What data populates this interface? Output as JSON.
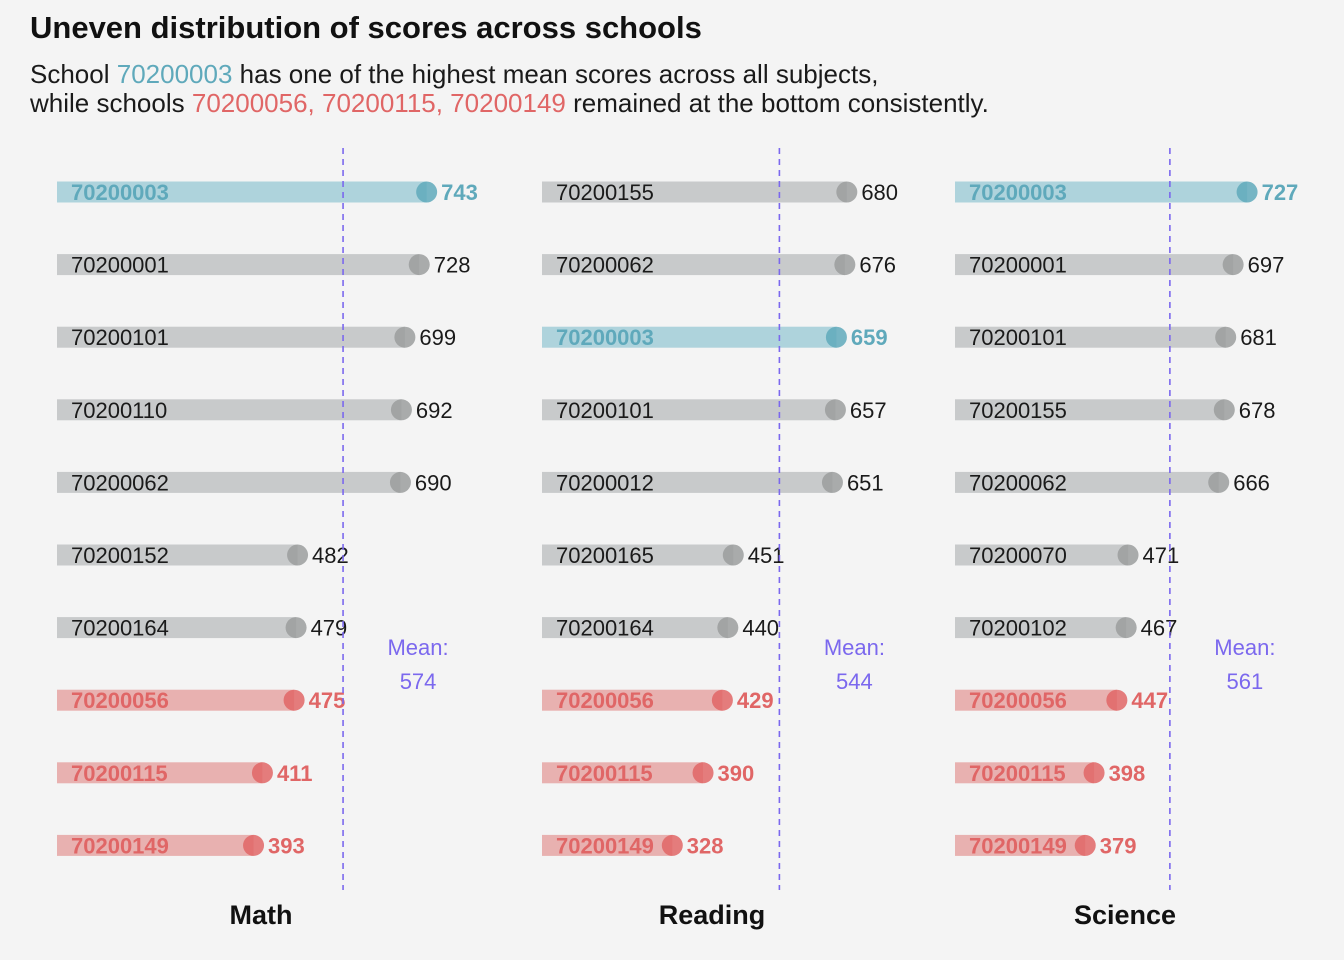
{
  "title": "Uneven distribution of scores across schools",
  "subtitle": {
    "line1": {
      "pre": "School ",
      "highlight": "70200003",
      "post": " has one of the highest mean scores across all subjects,"
    },
    "line2": {
      "pre": "while schools ",
      "highlight": "70200056, 70200115, 70200149",
      "post": " remained at the bottom consistently."
    }
  },
  "colors": {
    "background": "#f4f4f4",
    "highlight_top": "#5fa9bb",
    "highlight_top_bar": "#aed3dc",
    "highlight_bottom": "#e06666",
    "highlight_bottom_bar": "#e8b1b0",
    "neutral_bar": "#c8cacb",
    "neutral_dot": "#9b9d9e",
    "mean_line": "#7b68ee"
  },
  "chart_data": [
    {
      "type": "bar",
      "xlabel": "Math",
      "mean_label": "Mean:",
      "mean": 574,
      "rows": [
        {
          "school": "70200003",
          "value": 743,
          "group": "top"
        },
        {
          "school": "70200001",
          "value": 728,
          "group": "neutral"
        },
        {
          "school": "70200101",
          "value": 699,
          "group": "neutral"
        },
        {
          "school": "70200110",
          "value": 692,
          "group": "neutral"
        },
        {
          "school": "70200062",
          "value": 690,
          "group": "neutral"
        },
        {
          "school": "70200152",
          "value": 482,
          "group": "neutral"
        },
        {
          "school": "70200164",
          "value": 479,
          "group": "neutral"
        },
        {
          "school": "70200056",
          "value": 475,
          "group": "bottom"
        },
        {
          "school": "70200115",
          "value": 411,
          "group": "bottom"
        },
        {
          "school": "70200149",
          "value": 393,
          "group": "bottom"
        }
      ]
    },
    {
      "type": "bar",
      "xlabel": "Reading",
      "mean_label": "Mean:",
      "mean": 544,
      "rows": [
        {
          "school": "70200155",
          "value": 680,
          "group": "neutral"
        },
        {
          "school": "70200062",
          "value": 676,
          "group": "neutral"
        },
        {
          "school": "70200003",
          "value": 659,
          "group": "top"
        },
        {
          "school": "70200101",
          "value": 657,
          "group": "neutral"
        },
        {
          "school": "70200012",
          "value": 651,
          "group": "neutral"
        },
        {
          "school": "70200165",
          "value": 451,
          "group": "neutral"
        },
        {
          "school": "70200164",
          "value": 440,
          "group": "neutral"
        },
        {
          "school": "70200056",
          "value": 429,
          "group": "bottom"
        },
        {
          "school": "70200115",
          "value": 390,
          "group": "bottom"
        },
        {
          "school": "70200149",
          "value": 328,
          "group": "bottom"
        }
      ]
    },
    {
      "type": "bar",
      "xlabel": "Science",
      "mean_label": "Mean:",
      "mean": 561,
      "rows": [
        {
          "school": "70200003",
          "value": 727,
          "group": "top"
        },
        {
          "school": "70200001",
          "value": 697,
          "group": "neutral"
        },
        {
          "school": "70200101",
          "value": 681,
          "group": "neutral"
        },
        {
          "school": "70200155",
          "value": 678,
          "group": "neutral"
        },
        {
          "school": "70200062",
          "value": 666,
          "group": "neutral"
        },
        {
          "school": "70200070",
          "value": 471,
          "group": "neutral"
        },
        {
          "school": "70200102",
          "value": 467,
          "group": "neutral"
        },
        {
          "school": "70200056",
          "value": 447,
          "group": "bottom"
        },
        {
          "school": "70200115",
          "value": 398,
          "group": "bottom"
        },
        {
          "school": "70200149",
          "value": 379,
          "group": "bottom"
        }
      ]
    }
  ]
}
